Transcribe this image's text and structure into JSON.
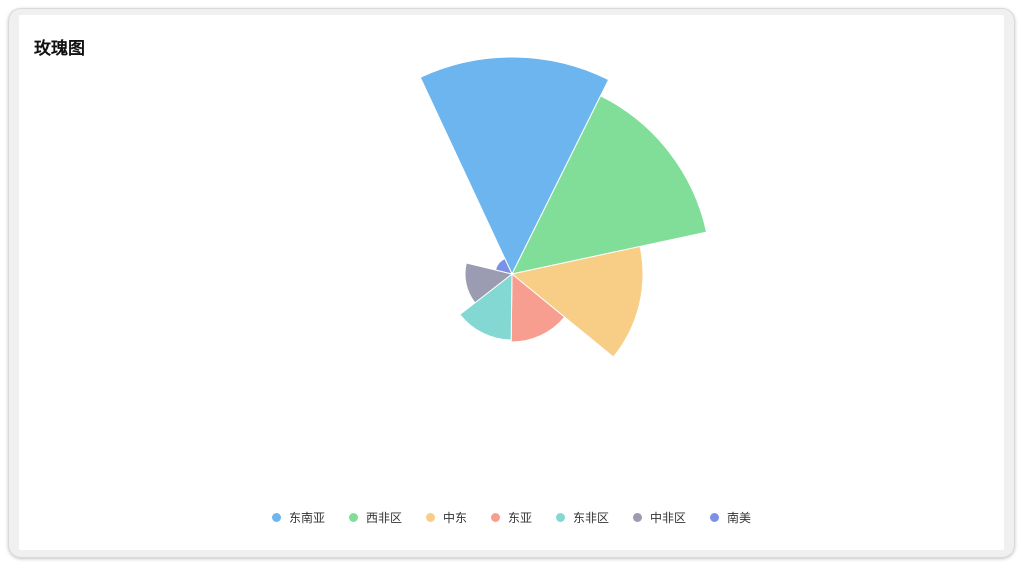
{
  "card": {
    "title": "玫瑰图"
  },
  "chart_data": {
    "type": "rose",
    "categories": [
      "东南亚",
      "西非区",
      "中东",
      "东亚",
      "东非区",
      "中非区",
      "南美"
    ],
    "values": [
      217,
      199,
      131,
      68,
      66,
      47,
      17
    ],
    "colors": [
      "#6cb5ef",
      "#80de99",
      "#f8cd86",
      "#f89e90",
      "#83d8d3",
      "#9b9bb1",
      "#7b90e6"
    ],
    "legend_position": "bottom",
    "start_angle_deg": -25,
    "sector_angle_deg": 51.43
  }
}
